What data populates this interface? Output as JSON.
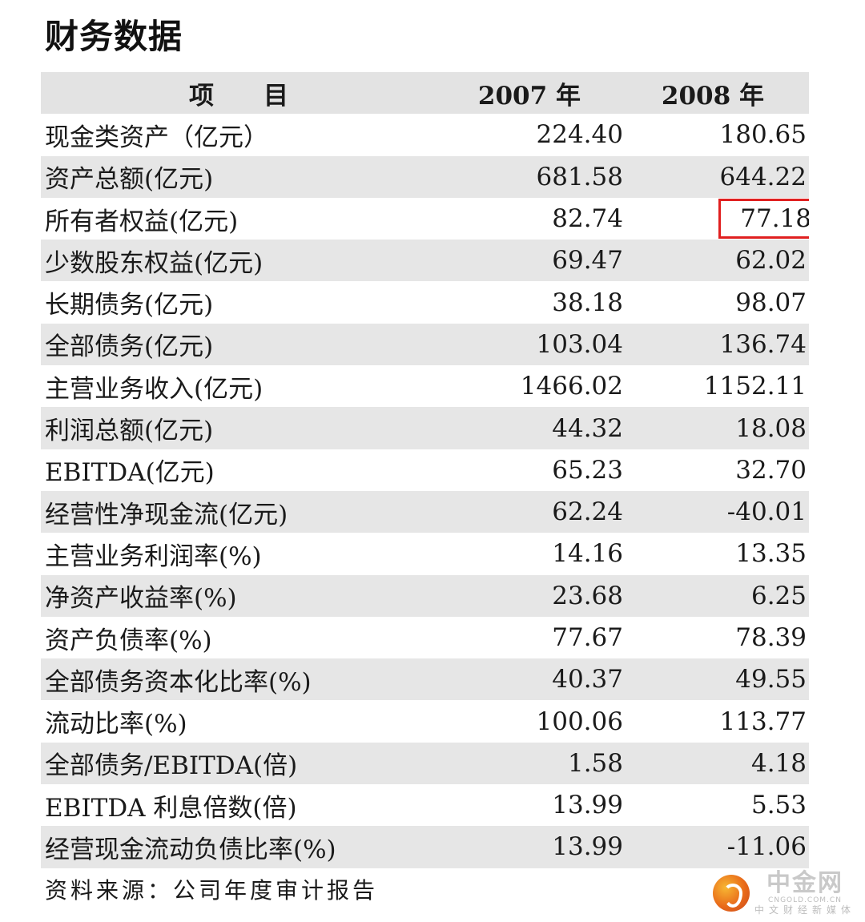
{
  "title": "财务数据",
  "table": {
    "headers": {
      "item": "项目",
      "y2007": "2007 年",
      "y2008": "2008 年"
    },
    "rows": [
      {
        "item": "现金类资产（亿元）",
        "y2007": "224.40",
        "y2008": "180.65"
      },
      {
        "item": "资产总额(亿元)",
        "y2007": "681.58",
        "y2008": "644.22"
      },
      {
        "item": "所有者权益(亿元)",
        "y2007": "82.74",
        "y2008": "77.18",
        "highlight_2008": true
      },
      {
        "item": "少数股东权益(亿元)",
        "y2007": "69.47",
        "y2008": "62.02"
      },
      {
        "item": "长期债务(亿元)",
        "y2007": "38.18",
        "y2008": "98.07"
      },
      {
        "item": "全部债务(亿元)",
        "y2007": "103.04",
        "y2008": "136.74"
      },
      {
        "item": "主营业务收入(亿元)",
        "y2007": "1466.02",
        "y2008": "1152.11"
      },
      {
        "item": "利润总额(亿元)",
        "y2007": "44.32",
        "y2008": "18.08"
      },
      {
        "item": "EBITDA(亿元)",
        "y2007": "65.23",
        "y2008": "32.70"
      },
      {
        "item": "经营性净现金流(亿元)",
        "y2007": "62.24",
        "y2008": "-40.01"
      },
      {
        "item": "主营业务利润率(%)",
        "y2007": "14.16",
        "y2008": "13.35"
      },
      {
        "item": "净资产收益率(%)",
        "y2007": "23.68",
        "y2008": "6.25"
      },
      {
        "item": "资产负债率(%)",
        "y2007": "77.67",
        "y2008": "78.39"
      },
      {
        "item": "全部债务资本化比率(%)",
        "y2007": "40.37",
        "y2008": "49.55"
      },
      {
        "item": "流动比率(%)",
        "y2007": "100.06",
        "y2008": "113.77"
      },
      {
        "item": "全部债务/EBITDA(倍)",
        "y2007": "1.58",
        "y2008": "4.18"
      },
      {
        "item": "EBITDA 利息倍数(倍)",
        "y2007": "13.99",
        "y2008": "5.53"
      },
      {
        "item": "经营现金流动负债比率(%)",
        "y2007": "13.99",
        "y2008": "-11.06"
      }
    ]
  },
  "source_note": "资料来源：公司年度审计报告",
  "watermark": {
    "brand": "中金网",
    "domain": "CNGOLD.COM.CN",
    "tagline": "中文财经新媒体",
    "accent_color": "#e96b1a"
  },
  "colors": {
    "row_shade": "#e6e6e6",
    "header_shade": "#e3e3e3",
    "highlight_border": "#e02020"
  }
}
